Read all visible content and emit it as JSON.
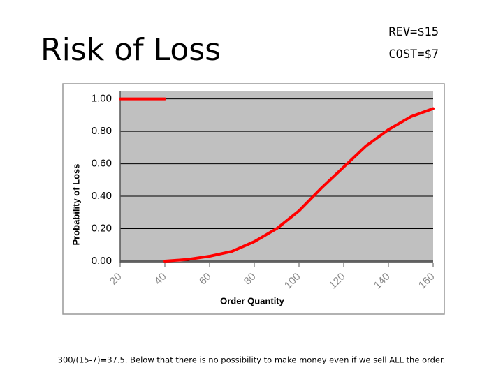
{
  "slide": {
    "title": "Risk of Loss",
    "rev": "REV=$15",
    "cost": "COST=$7",
    "note": "300/(15-7)=37.5. Below that there is no possibility to make money even if we sell ALL the order."
  },
  "chart_data": {
    "type": "line",
    "xlabel": "Order Quantity",
    "ylabel": "Probability of Loss",
    "x": [
      20,
      40,
      null,
      40,
      50,
      60,
      70,
      80,
      90,
      100,
      110,
      120,
      130,
      140,
      150,
      160
    ],
    "series": [
      {
        "name": "Risk of Loss",
        "color": "#ff0000",
        "values": [
          1,
          1,
          null,
          0,
          0.01,
          0.03,
          0.06,
          0.12,
          0.2,
          0.31,
          0.45,
          0.58,
          0.71,
          0.81,
          0.89,
          0.94
        ]
      }
    ],
    "xlim": [
      20,
      160
    ],
    "xticks": [
      20,
      40,
      60,
      80,
      100,
      120,
      140,
      160
    ],
    "ylim": [
      0,
      1.05
    ],
    "yticks": [
      {
        "value": 0,
        "label": "0.00"
      },
      {
        "value": 0.2,
        "label": "0.20"
      },
      {
        "value": 0.4,
        "label": "0.40"
      },
      {
        "value": 0.6,
        "label": "0.60"
      },
      {
        "value": 0.8,
        "label": "0.80"
      },
      {
        "value": 1,
        "label": "1.00"
      }
    ],
    "grid": true
  }
}
